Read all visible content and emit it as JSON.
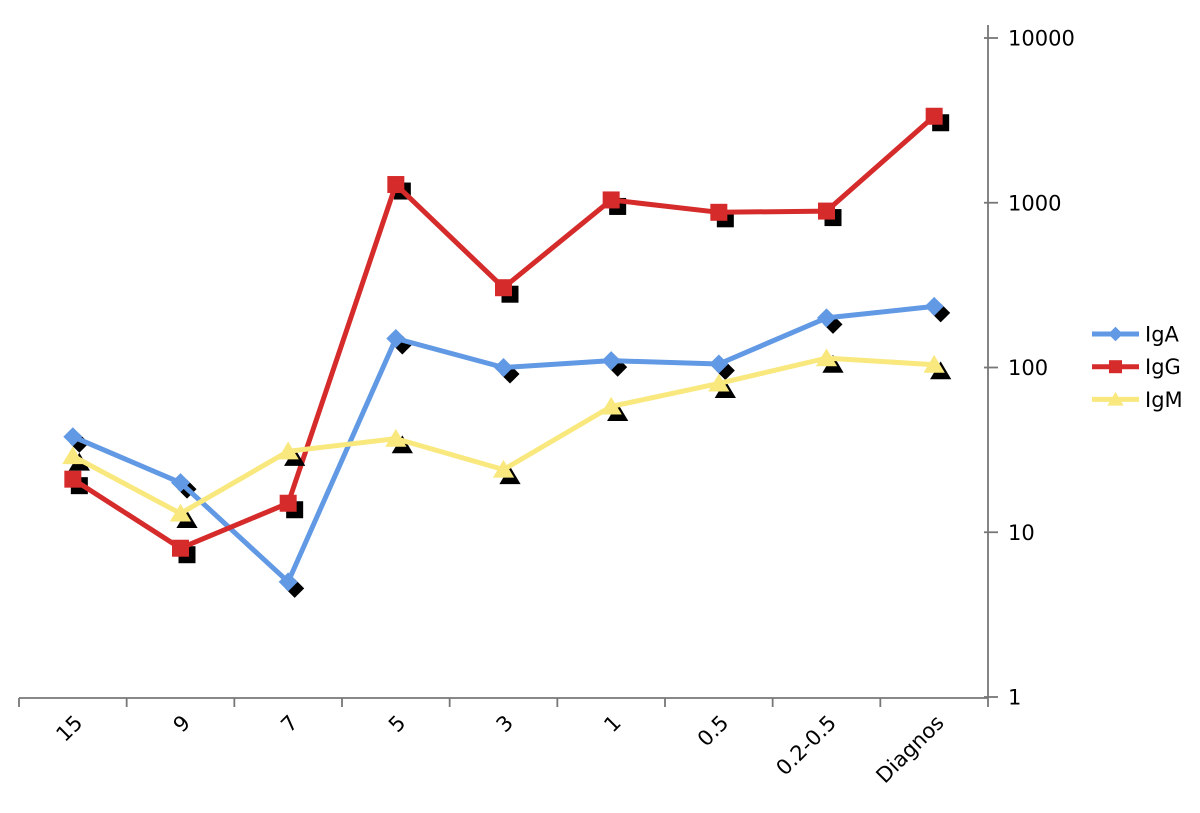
{
  "chart_data": {
    "type": "line",
    "title": "",
    "categories": [
      "15",
      "9",
      "7",
      "5",
      "3",
      "1",
      "0.5",
      "0.2-0.5",
      "Diagnos"
    ],
    "series": [
      {
        "name": "IgA",
        "color": "#6199E4",
        "marker": "diamond",
        "values": [
          38,
          20,
          5,
          150,
          100,
          110,
          105,
          200,
          235
        ]
      },
      {
        "name": "IgG",
        "color": "#D62B2B",
        "marker": "square",
        "values": [
          21,
          8,
          15,
          1290,
          305,
          1040,
          875,
          890,
          3350
        ]
      },
      {
        "name": "IgM",
        "color": "#F9E87E",
        "marker": "triangle",
        "values": [
          29,
          13,
          31,
          37,
          24,
          58,
          80,
          114,
          104
        ]
      }
    ],
    "y_axis": {
      "scale": "log",
      "min": 1,
      "max": 10000,
      "side": "right",
      "ticks": [
        "1",
        "10",
        "100",
        "1000",
        "10000"
      ]
    },
    "x_axis": {
      "label_rotation_deg": -45
    },
    "legend": {
      "position": "right",
      "entries": [
        "IgA",
        "IgG",
        "IgM"
      ]
    },
    "grid": false,
    "styles": {
      "axis_color": "#777777",
      "marker_shadow_color": "#000000",
      "text_color": "#000000",
      "background": "#FFFFFF"
    }
  }
}
